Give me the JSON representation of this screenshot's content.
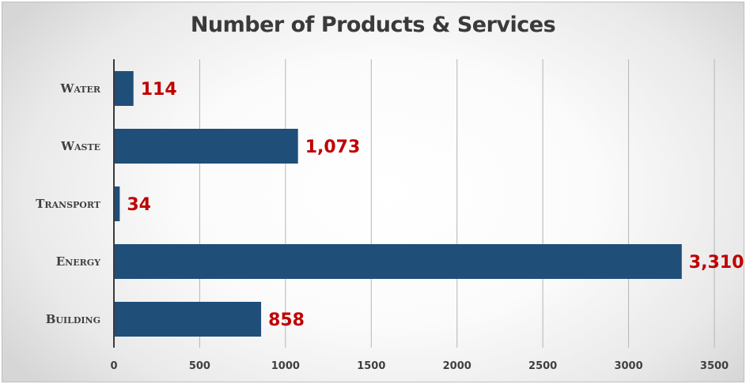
{
  "chart_data": {
    "type": "bar",
    "orientation": "horizontal",
    "title": "Number of Products & Services",
    "categories": [
      "Water",
      "Waste",
      "Transport",
      "Energy",
      "Building"
    ],
    "values": [
      114,
      1073,
      34,
      3310,
      858
    ],
    "data_labels": [
      "114",
      "1,073",
      "34",
      "3,310",
      "858"
    ],
    "xticks": [
      "0",
      "500",
      "1000",
      "1500",
      "2000",
      "2500",
      "3000",
      "3500"
    ],
    "xlim": [
      0,
      3500
    ],
    "grid": true,
    "colors": {
      "bar": "#1f4e79",
      "data_label": "#c00000",
      "title": "#3a3a3a"
    }
  }
}
